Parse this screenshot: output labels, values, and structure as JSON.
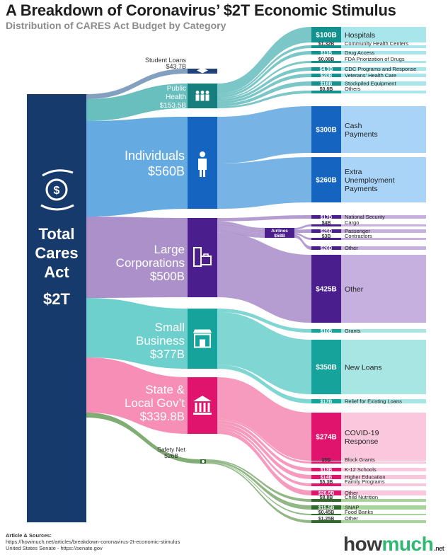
{
  "title": "A Breakdown of Coronavirus’ $2T Economic Stimulus",
  "subtitle": "Distribution of CARES Act Budget by Category",
  "root": {
    "lines": [
      "Total",
      "Cares",
      "Act"
    ],
    "value": "$2T"
  },
  "categories": [
    {
      "id": "student",
      "lines": [
        "Student Loans",
        "$43.7B"
      ],
      "color": "#6f8fb5",
      "icon": "graduation-cap-icon",
      "value_bn": 43.7
    },
    {
      "id": "health",
      "lines": [
        "Public",
        "Health",
        "$153.5B"
      ],
      "color": "#4fb3b3",
      "icon": "family-icon",
      "value_bn": 153.5
    },
    {
      "id": "individuals",
      "lines": [
        "Individuals",
        "$560B"
      ],
      "color": "#4a9bdc",
      "icon": "person-icon",
      "value_bn": 560
    },
    {
      "id": "corporations",
      "lines": [
        "Large",
        "Corporations",
        "$500B"
      ],
      "color": "#9c7cc1",
      "icon": "building-briefcase-icon",
      "value_bn": 500
    },
    {
      "id": "small",
      "lines": [
        "Small",
        "Business",
        "$377B"
      ],
      "color": "#54c8c3",
      "icon": "storefront-icon",
      "value_bn": 377
    },
    {
      "id": "state",
      "lines": [
        "State &",
        "Local Gov’t",
        "$339.8B"
      ],
      "color": "#f47aa8",
      "icon": "government-building-icon",
      "value_bn": 339.8
    },
    {
      "id": "safety",
      "lines": [
        "Safety Net",
        "$26B"
      ],
      "color": "#6b9f5c",
      "icon": "hands-icon",
      "value_bn": 26
    }
  ],
  "airlines": {
    "label": "Airlines",
    "value": "$58B"
  },
  "items": [
    {
      "group": "health",
      "value": "$100B",
      "label": "Hospitals",
      "big": true
    },
    {
      "group": "health",
      "value": "$1.32B",
      "label": "Community Health Centers"
    },
    {
      "group": "health",
      "value": "$11B",
      "label": "Drug Access"
    },
    {
      "group": "health",
      "value": "$0.08B",
      "label": "FDA Priorization of Drugs"
    },
    {
      "group": "health",
      "value": "$4.3B",
      "label": "CDC Programs and Response"
    },
    {
      "group": "health",
      "value": "$20B",
      "label": "Veterans’ Health Care"
    },
    {
      "group": "health",
      "value": "$16B",
      "label": "Stockpiled Equipment"
    },
    {
      "group": "health",
      "value": "$0.8B",
      "label": "Others"
    },
    {
      "group": "individuals",
      "value": "$300B",
      "label": "Cash Payments",
      "big": true
    },
    {
      "group": "individuals",
      "value": "$260B",
      "label": "Extra Unemployment Payments",
      "big": true
    },
    {
      "group": "corporations",
      "value": "$17B",
      "label": "National Security"
    },
    {
      "group": "corporations",
      "value": "$4B",
      "label": "Cargo"
    },
    {
      "group": "corporations",
      "value": "$25B",
      "label": "Passenger"
    },
    {
      "group": "corporations",
      "value": "$3B",
      "label": "Contractors"
    },
    {
      "group": "corporations",
      "value": "$26B",
      "label": "Other"
    },
    {
      "group": "corporations",
      "value": "$425B",
      "label": "Other",
      "big": true
    },
    {
      "group": "small",
      "value": "$10B",
      "label": "Grants"
    },
    {
      "group": "small",
      "value": "$350B",
      "label": "New Loans",
      "big": true
    },
    {
      "group": "small",
      "value": "$17B",
      "label": "Relief for Existing Loans"
    },
    {
      "group": "state",
      "value": "$274B",
      "label": "COVID-19 Response",
      "big": true
    },
    {
      "group": "state",
      "value": "$5B",
      "label": "Block Grants"
    },
    {
      "group": "state",
      "value": "$13B",
      "label": "K-12 Schools"
    },
    {
      "group": "state",
      "value": "$14B",
      "label": "Higher Education"
    },
    {
      "group": "state",
      "value": "$5.3B",
      "label": "Family Programs"
    },
    {
      "group": "state",
      "value": "$28.5B",
      "label": "Other"
    },
    {
      "group": "safety",
      "value": "$8.8B",
      "label": "Child Nutrition"
    },
    {
      "group": "safety",
      "value": "$15.5B",
      "label": "SNAP"
    },
    {
      "group": "safety",
      "value": "$0.45B",
      "label": "Food Banks"
    },
    {
      "group": "safety",
      "value": "$1.25B",
      "label": "Other"
    }
  ],
  "sources": {
    "heading": "Article & Sources:",
    "line1": "https://howmuch.net/articles/breakdown-coronavirus-2t-economic-stimulus",
    "line2": "United States Senate - https://senate.gov"
  },
  "logo": {
    "how": "how",
    "much": "much",
    "net": ".net"
  }
}
